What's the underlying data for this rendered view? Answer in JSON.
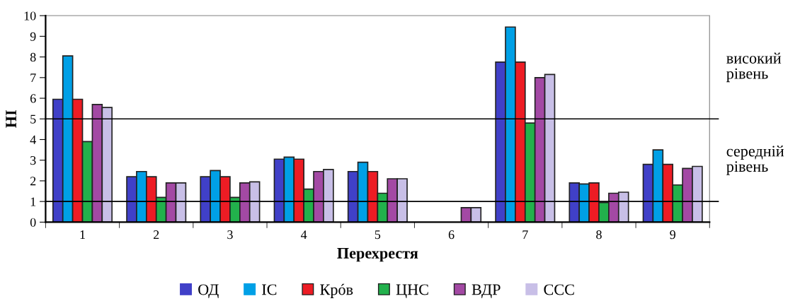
{
  "chart_data": {
    "type": "bar",
    "xlabel": "Перехрестя",
    "ylabel": "НІ",
    "categories": [
      "1",
      "2",
      "3",
      "4",
      "5",
      "6",
      "7",
      "8",
      "9"
    ],
    "series": [
      {
        "name": "ОД",
        "color": "#4040c8",
        "values": [
          5.95,
          2.2,
          2.2,
          3.05,
          2.45,
          0,
          7.75,
          1.9,
          2.8
        ]
      },
      {
        "name": "ІС",
        "color": "#00a0e6",
        "values": [
          8.05,
          2.45,
          2.5,
          3.15,
          2.9,
          0,
          9.45,
          1.85,
          3.5
        ]
      },
      {
        "name": "Крóв",
        "color": "#ed1c24",
        "values": [
          5.95,
          2.2,
          2.2,
          3.05,
          2.45,
          0,
          7.75,
          1.9,
          2.8
        ]
      },
      {
        "name": "ЦНС",
        "color": "#22b14c",
        "values": [
          3.9,
          1.2,
          1.2,
          1.6,
          1.4,
          0,
          4.8,
          0.95,
          1.8
        ]
      },
      {
        "name": "ВДР",
        "color": "#a349a4",
        "values": [
          5.7,
          1.9,
          1.9,
          2.45,
          2.1,
          0.7,
          7.0,
          1.4,
          2.6
        ]
      },
      {
        "name": "ССС",
        "color": "#c8bfe7",
        "values": [
          5.55,
          1.9,
          1.95,
          2.55,
          2.1,
          0.7,
          7.15,
          1.45,
          2.7
        ]
      }
    ],
    "ylim": [
      0,
      10
    ],
    "yticks": [
      0,
      1,
      2,
      3,
      4,
      5,
      6,
      7,
      8,
      9,
      10
    ],
    "ref_lines": [
      {
        "axis": "y",
        "value": 5,
        "label": "високий\nрівень",
        "color": "#000000"
      },
      {
        "axis": "y",
        "value": 1,
        "label": "середній\nрівень",
        "color": "#000000"
      }
    ],
    "grid": false,
    "legend": "bottom"
  }
}
